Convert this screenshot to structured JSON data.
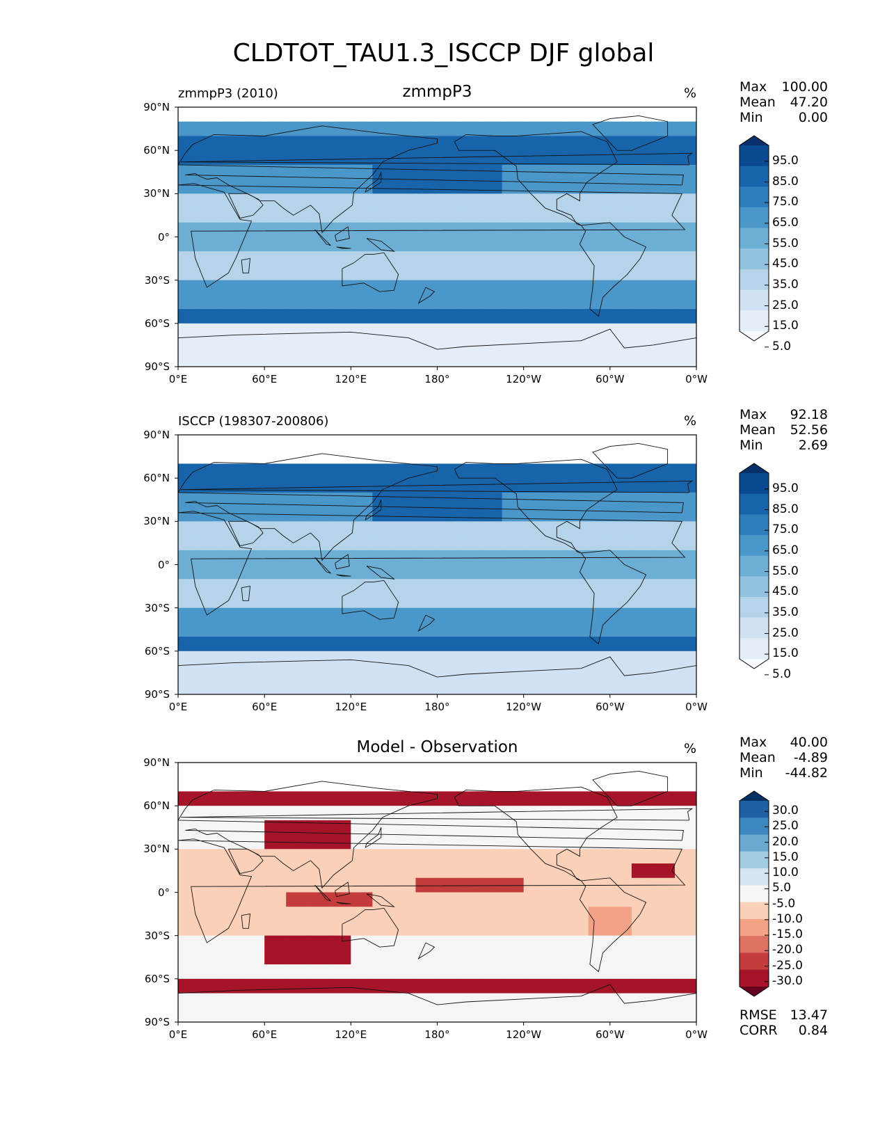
{
  "title": "CLDTOT_TAU1.3_ISCCP DJF global",
  "lat_ticks": [
    "90°N",
    "60°N",
    "30°N",
    "0°",
    "30°S",
    "60°S",
    "90°S"
  ],
  "lon_ticks": [
    "0°E",
    "60°E",
    "120°E",
    "180°",
    "120°W",
    "60°W",
    "0°W"
  ],
  "panels": [
    {
      "left_title": "zmmpP3 (2010)",
      "center_title": "zmmpP3",
      "unit": "%",
      "stats": [
        {
          "label": "Max",
          "value": "100.00"
        },
        {
          "label": "Mean",
          "value": "47.20"
        },
        {
          "label": "Min",
          "value": "0.00"
        }
      ],
      "colorbar_ticks": [
        "95.0",
        "85.0",
        "75.0",
        "65.0",
        "55.0",
        "45.0",
        "35.0",
        "25.0",
        "15.0",
        "5.0"
      ],
      "colors": [
        "#f7fbff",
        "#e3eef9",
        "#cfe1f2",
        "#b5d4e9",
        "#93c3df",
        "#6daed5",
        "#4b97c9",
        "#2f7ebc",
        "#1864aa",
        "#0a4a90",
        "#08306b"
      ],
      "shape": "bothtips"
    },
    {
      "left_title": "ISCCP (198307-200806)",
      "center_title": "",
      "unit": "%",
      "stats": [
        {
          "label": "Max",
          "value": "92.18"
        },
        {
          "label": "Mean",
          "value": "52.56"
        },
        {
          "label": "Min",
          "value": "2.69"
        }
      ],
      "colorbar_ticks": [
        "95.0",
        "85.0",
        "75.0",
        "65.0",
        "55.0",
        "45.0",
        "35.0",
        "25.0",
        "15.0",
        "5.0"
      ],
      "colors": [
        "#f7fbff",
        "#e3eef9",
        "#cfe1f2",
        "#b5d4e9",
        "#93c3df",
        "#6daed5",
        "#4b97c9",
        "#2f7ebc",
        "#1864aa",
        "#0a4a90",
        "#08306b"
      ],
      "shape": "bothtips"
    },
    {
      "left_title": "",
      "center_title": "Model - Observation",
      "unit": "%",
      "stats": [
        {
          "label": "Max",
          "value": "40.00"
        },
        {
          "label": "Mean",
          "value": "-4.89"
        },
        {
          "label": "Min",
          "value": "-44.82"
        }
      ],
      "colorbar_ticks": [
        "30.0",
        "25.0",
        "20.0",
        "15.0",
        "10.0",
        "5.0",
        "-5.0",
        "-10.0",
        "-15.0",
        "-20.0",
        "-25.0",
        "-30.0"
      ],
      "colors": [
        "#67001f",
        "#a51429",
        "#c43c3c",
        "#de7262",
        "#f2a385",
        "#fbd0b9",
        "#f5f5f5",
        "#d4e6f1",
        "#a3cce3",
        "#6aaad0",
        "#3c87be",
        "#1f5fa3",
        "#053061"
      ],
      "shape": "bothtips",
      "metrics": [
        {
          "label": "RMSE",
          "value": "13.47"
        },
        {
          "label": "CORR",
          "value": "0.84"
        }
      ]
    }
  ]
}
